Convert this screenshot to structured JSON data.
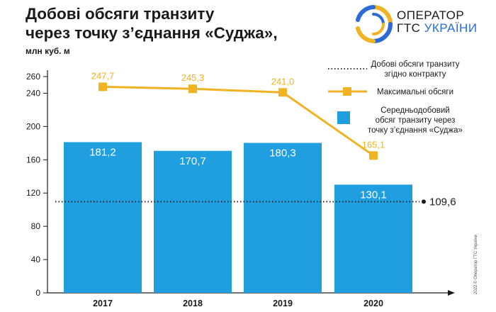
{
  "header": {
    "title_line1": "Добові обсяги транзиту",
    "title_line2": "через точку з’єднання «Суджа»,",
    "unit": "млн куб. м"
  },
  "logo": {
    "line1": "ОПЕРАТОР",
    "line2_a": "ГТС ",
    "line2_b": "УКРАЇНИ"
  },
  "copyright": "2022 © Оператор ГТС України",
  "colors": {
    "bar": "#1f9fe0",
    "max_line": "#f0b323",
    "contract_line": "#1a1a1a",
    "axis": "#1a1a1a"
  },
  "chart_data": {
    "type": "bar",
    "title": "Добові обсяги транзиту через точку з’єднання «Суджа»,",
    "ylabel": "млн куб. м",
    "ylim": [
      0,
      260
    ],
    "yticks": [
      0,
      40,
      80,
      120,
      160,
      200,
      240,
      260
    ],
    "categories": [
      "2017",
      "2018",
      "2019",
      "2020"
    ],
    "series": [
      {
        "name": "Середньодобовий обсяг транзиту через точку з’єднання «Суджа»",
        "kind": "bar",
        "values": [
          181.2,
          170.7,
          180.3,
          130.1
        ],
        "labels": [
          "181,2",
          "170,7",
          "180,3",
          "130,1"
        ]
      },
      {
        "name": "Максимальні обсяги",
        "kind": "line",
        "values": [
          247.7,
          245.3,
          241.0,
          165.1
        ],
        "labels": [
          "247,7",
          "245,3",
          "241,0",
          "165,1"
        ]
      },
      {
        "name": "Добові обсяги транзиту згідно контракту",
        "kind": "reference",
        "value": 109.6,
        "label": "109,6"
      }
    ],
    "legend": {
      "placement": "top-right",
      "contract_lines": [
        "Добові обсяги транзиту",
        "згідно контракту"
      ],
      "max_lines": [
        "Максимальні обсяги"
      ],
      "bar_lines": [
        "Середньодобовий",
        "обсяг транзиту через",
        "точку з’єднання «Суджа»"
      ]
    },
    "grid": false
  }
}
